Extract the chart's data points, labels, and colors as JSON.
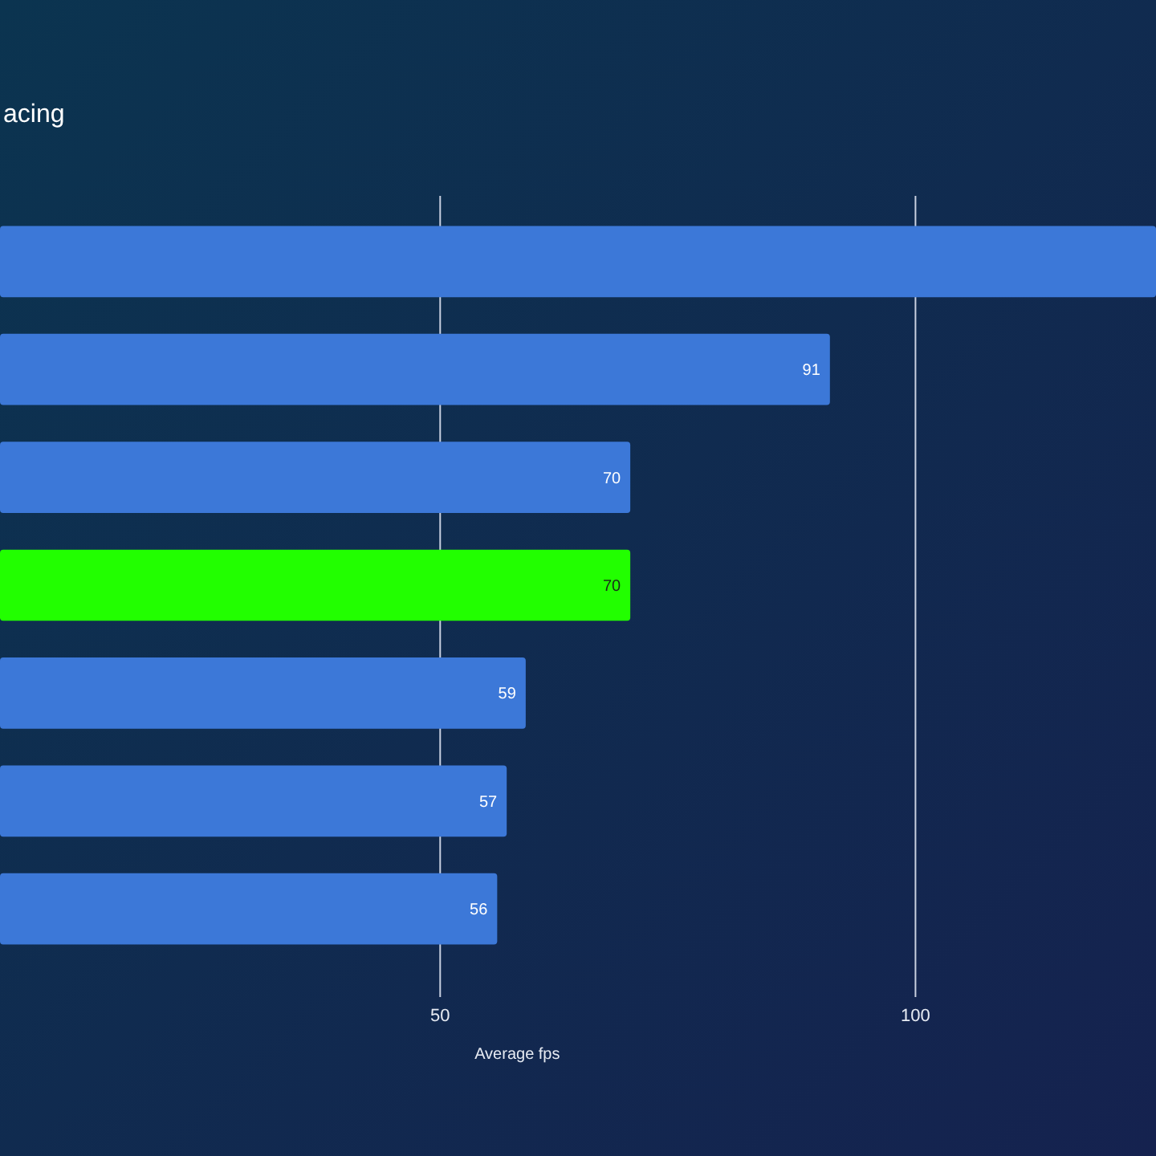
{
  "chart_data": {
    "type": "bar",
    "orientation": "horizontal",
    "title": "acing",
    "xlabel": "Average fps",
    "categories": [
      null,
      null,
      null,
      null,
      null,
      null,
      null
    ],
    "values": [
      125.3,
      91,
      70,
      70,
      59,
      57,
      56
    ],
    "value_labels": [
      null,
      "91",
      "70",
      "70",
      "59",
      "57",
      "56"
    ],
    "colors": [
      "#3c78d8",
      "#3c78d8",
      "#3c78d8",
      "#22ff00",
      "#3c78d8",
      "#3c78d8",
      "#3c78d8"
    ],
    "xlim": [
      3.7,
      125.3
    ],
    "xticks": [
      50,
      100
    ],
    "grid": "x"
  }
}
